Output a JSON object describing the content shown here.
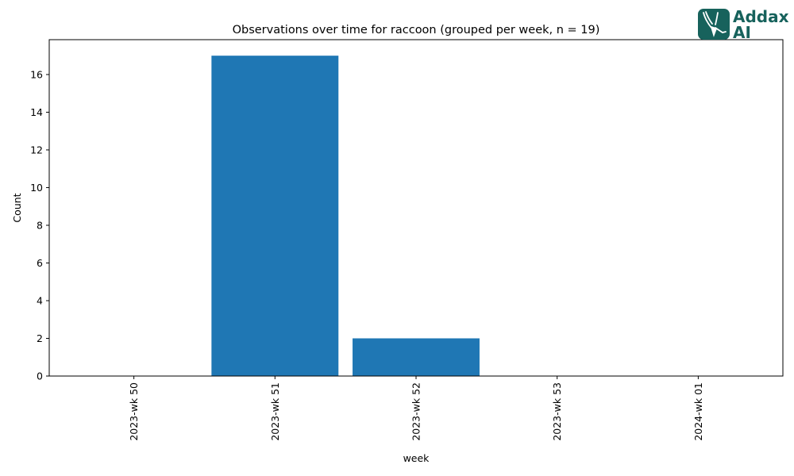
{
  "chart_data": {
    "type": "bar",
    "title": "Observations over time for raccoon (grouped per week, n = 19)",
    "xlabel": "week",
    "ylabel": "Count",
    "categories": [
      "2023-wk 50",
      "2023-wk 51",
      "2023-wk 52",
      "2023-wk 53",
      "2024-wk 01"
    ],
    "values": [
      0,
      17,
      2,
      0,
      0
    ],
    "ylim": [
      0,
      17.85
    ],
    "yticks": [
      0,
      2,
      4,
      6,
      8,
      10,
      12,
      14,
      16
    ],
    "bar_color": "#1f77b4",
    "grid": false,
    "legend": "none"
  },
  "logo": {
    "line1": "Addax",
    "line2": "AI",
    "color": "#17625c"
  }
}
